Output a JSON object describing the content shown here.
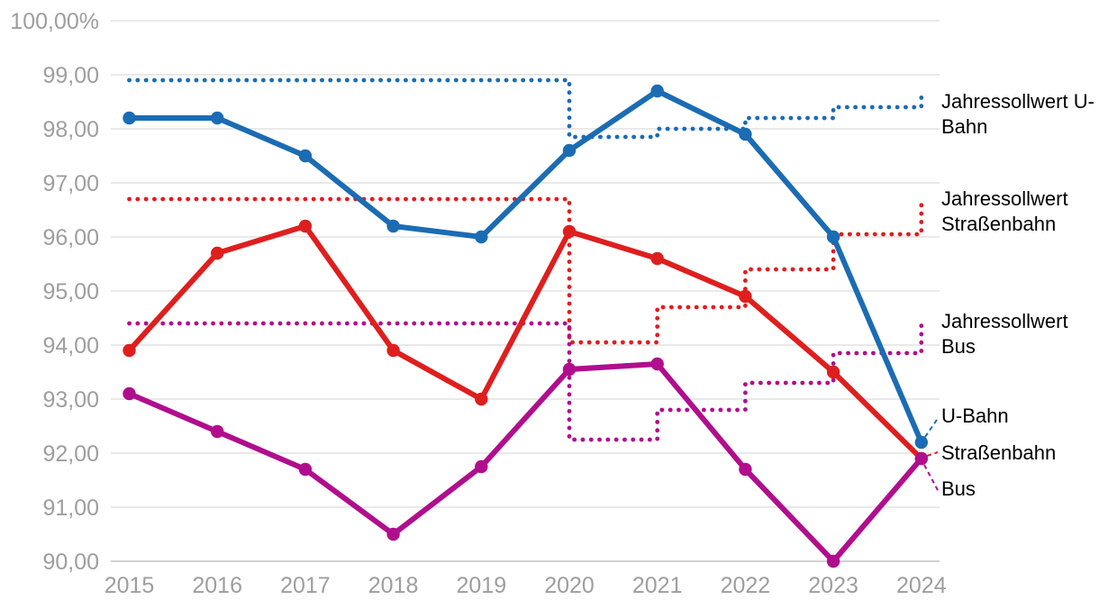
{
  "page": {
    "background_color": "#ffffff",
    "axis_text_color": "#9e9e9e",
    "grid_color": "#e2e2e2",
    "baseline_color": "#c4c4c4",
    "label_text_color": "#000000"
  },
  "chart_data": {
    "type": "line",
    "title": "",
    "x_categories": [
      "2015",
      "2016",
      "2017",
      "2018",
      "2019",
      "2020",
      "2021",
      "2022",
      "2023",
      "2024"
    ],
    "y_axis": {
      "min": 90,
      "max": 100,
      "tick_step": 1,
      "ticks": [
        {
          "label": "100,00%",
          "value": 100
        },
        {
          "label": "99,00",
          "value": 99
        },
        {
          "label": "98,00",
          "value": 98
        },
        {
          "label": "97,00",
          "value": 97
        },
        {
          "label": "96,00",
          "value": 96
        },
        {
          "label": "95,00",
          "value": 95
        },
        {
          "label": "94,00",
          "value": 94
        },
        {
          "label": "93,00",
          "value": 93
        },
        {
          "label": "92,00",
          "value": 92
        },
        {
          "label": "91,00",
          "value": 91
        },
        {
          "label": "90,00",
          "value": 90
        }
      ]
    },
    "grid": "horizontal",
    "legend_position": "right",
    "series": [
      {
        "name": "U-Bahn",
        "style": "solid",
        "color": "#1b6cb3",
        "values": [
          98.2,
          98.2,
          97.5,
          96.2,
          96.0,
          97.6,
          98.7,
          97.9,
          96.0,
          92.2
        ]
      },
      {
        "name": "Straßenbahn",
        "style": "solid",
        "color": "#de1f1e",
        "values": [
          93.9,
          95.7,
          96.2,
          93.9,
          93.0,
          96.1,
          95.6,
          94.9,
          93.5,
          91.9
        ]
      },
      {
        "name": "Bus",
        "style": "solid",
        "color": "#b00e8d",
        "values": [
          93.1,
          92.4,
          91.7,
          90.5,
          91.75,
          93.55,
          93.65,
          91.7,
          90.0,
          91.9
        ]
      },
      {
        "name": "Jahressollwert U-Bahn",
        "style": "dotted-step",
        "color": "#1b6cb3",
        "segment_values": [
          98.9,
          98.9,
          98.9,
          98.9,
          98.9,
          97.85,
          98.0,
          98.2,
          98.4
        ],
        "end_tick_value": 98.6
      },
      {
        "name": "Jahressollwert Straßenbahn",
        "style": "dotted-step",
        "color": "#de1f1e",
        "segment_values": [
          96.7,
          96.7,
          96.7,
          96.7,
          96.7,
          94.05,
          94.7,
          95.4,
          96.05
        ],
        "end_tick_value": 96.7
      },
      {
        "name": "Jahressollwert Bus",
        "style": "dotted-step",
        "color": "#b00e8d",
        "segment_values": [
          94.4,
          94.4,
          94.4,
          94.4,
          94.4,
          92.25,
          92.8,
          93.3,
          93.85
        ],
        "end_tick_value": 94.4
      }
    ]
  }
}
